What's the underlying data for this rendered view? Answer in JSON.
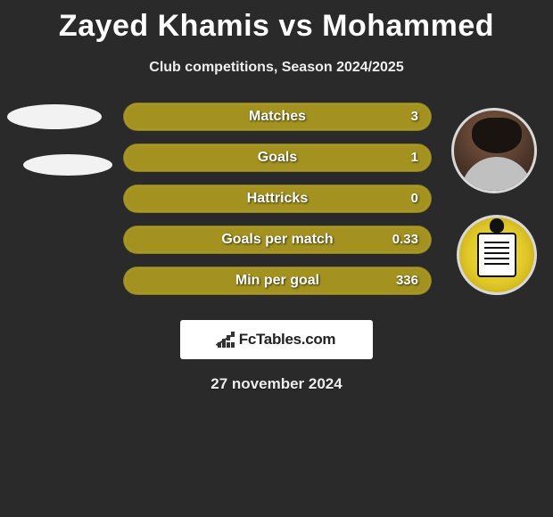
{
  "title": "Zayed Khamis vs Mohammed",
  "subtitle": "Club competitions, Season 2024/2025",
  "date": "27 november 2024",
  "logo_text": "FcTables.com",
  "stats": {
    "bar_color": "#a39220",
    "text_color": "#ffffff",
    "rows": [
      {
        "label": "Matches",
        "value": "3"
      },
      {
        "label": "Goals",
        "value": "1"
      },
      {
        "label": "Hattricks",
        "value": "0"
      },
      {
        "label": "Goals per match",
        "value": "0.33"
      },
      {
        "label": "Min per goal",
        "value": "336"
      }
    ]
  },
  "colors": {
    "background": "#2a2a2a",
    "title": "#ffffff",
    "subtitle": "#eeeeee",
    "logo_bg": "#ffffff",
    "logo_text": "#222222"
  }
}
